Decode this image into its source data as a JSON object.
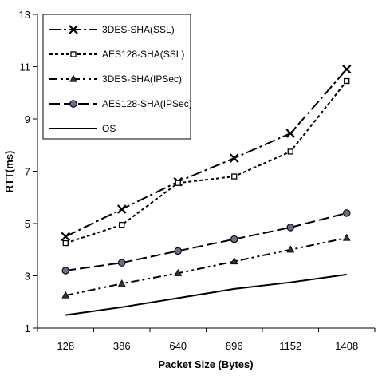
{
  "chart_data": {
    "type": "line",
    "title": "",
    "xlabel": "Packet Size (Bytes)",
    "ylabel": "RTT(ms)",
    "categories": [
      "128",
      "386",
      "640",
      "896",
      "1152",
      "1408"
    ],
    "ylim": [
      1,
      13
    ],
    "yticks": [
      1,
      3,
      5,
      7,
      9,
      11,
      13
    ],
    "grid": false,
    "legend_position": "top-left",
    "series": [
      {
        "name": "3DES-SHA(SSL)",
        "values": [
          4.5,
          5.55,
          6.6,
          7.5,
          8.45,
          10.9
        ],
        "marker": "x",
        "dash": "dash-dot"
      },
      {
        "name": "AES128-SHA(SSL)",
        "values": [
          4.25,
          4.95,
          6.55,
          6.8,
          7.75,
          10.45
        ],
        "marker": "square",
        "dash": "dash"
      },
      {
        "name": "3DES-SHA(IPSec)",
        "values": [
          2.25,
          2.7,
          3.1,
          3.55,
          4.0,
          4.45
        ],
        "marker": "triangle",
        "dash": "dash-dot-dot"
      },
      {
        "name": "AES128-SHA(IPSec)",
        "values": [
          3.2,
          3.5,
          3.95,
          4.4,
          4.85,
          5.4
        ],
        "marker": "circle",
        "dash": "long-dash"
      },
      {
        "name": "OS",
        "values": [
          1.5,
          1.8,
          2.15,
          2.5,
          2.75,
          3.05
        ],
        "marker": "none",
        "dash": "solid"
      }
    ]
  }
}
